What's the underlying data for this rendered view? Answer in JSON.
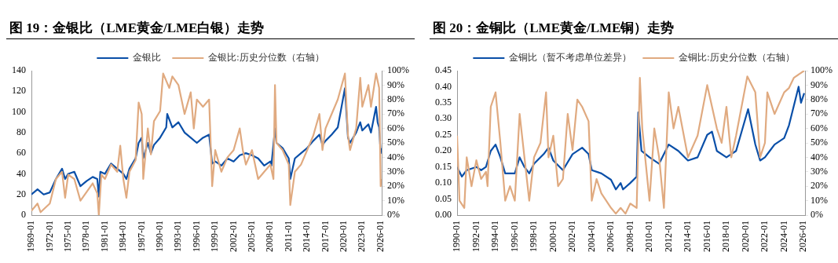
{
  "chart_data": [
    {
      "type": "line",
      "title": "图 19：金银比（LME黄金/LME白银）走势",
      "legend": "top",
      "grid": false,
      "marker": "none",
      "line_style": "solid",
      "xlim": [
        "1969-01",
        "2026-03"
      ],
      "xticks": [
        "1969-01",
        "1972-01",
        "1975-01",
        "1978-01",
        "1981-01",
        "1984-01",
        "1987-01",
        "1990-01",
        "1993-01",
        "1996-01",
        "1999-01",
        "2002-01",
        "2005-01",
        "2008-01",
        "2011-01",
        "2014-01",
        "2017-01",
        "2020-01",
        "2023-01",
        "2026-01"
      ],
      "ylim": [
        0,
        140
      ],
      "yticks": [
        0,
        20,
        40,
        60,
        80,
        100,
        120,
        140
      ],
      "y2lim": [
        0,
        100
      ],
      "y2ticks": [
        {
          "value": 0,
          "label": "0%"
        },
        {
          "value": 10,
          "label": "10%"
        },
        {
          "value": 20,
          "label": "20%"
        },
        {
          "value": 30,
          "label": "30%"
        },
        {
          "value": 40,
          "label": "40%"
        },
        {
          "value": 50,
          "label": "50%"
        },
        {
          "value": 60,
          "label": "60%"
        },
        {
          "value": 70,
          "label": "70%"
        },
        {
          "value": 80,
          "label": "80%"
        },
        {
          "value": 90,
          "label": "90%"
        },
        {
          "value": 100,
          "label": "100%"
        }
      ],
      "series": [
        {
          "name": "金银比",
          "color": "#0a4fa8",
          "x": [
            "1969-01",
            "1970-01",
            "1971-01",
            "1972-01",
            "1973-01",
            "1974-01",
            "1974-07",
            "1975-01",
            "1976-01",
            "1977-01",
            "1978-01",
            "1979-01",
            "1979-10",
            "1980-01",
            "1980-04",
            "1981-01",
            "1982-01",
            "1983-01",
            "1984-01",
            "1984-07",
            "1985-01",
            "1986-01",
            "1986-07",
            "1987-01",
            "1987-04",
            "1988-01",
            "1988-07",
            "1989-01",
            "1990-01",
            "1991-01",
            "1991-03",
            "1992-01",
            "1993-01",
            "1994-01",
            "1995-01",
            "1996-01",
            "1997-01",
            "1998-01",
            "1998-07",
            "1999-01",
            "2000-01",
            "2001-01",
            "2002-01",
            "2003-01",
            "2004-01",
            "2005-01",
            "2006-01",
            "2007-01",
            "2008-01",
            "2008-03",
            "2008-10",
            "2009-01",
            "2010-01",
            "2011-01",
            "2011-04",
            "2012-01",
            "2013-01",
            "2014-01",
            "2015-01",
            "2016-01",
            "2016-07",
            "2017-01",
            "2018-01",
            "2019-01",
            "2020-03",
            "2020-09",
            "2021-01",
            "2022-01",
            "2022-09",
            "2023-01",
            "2024-01",
            "2024-06",
            "2025-04",
            "2025-07",
            "2025-10",
            "2026-01",
            "2026-02"
          ],
          "values": [
            20,
            25,
            20,
            22,
            35,
            45,
            35,
            40,
            42,
            28,
            33,
            37,
            35,
            18,
            42,
            40,
            50,
            45,
            40,
            35,
            45,
            55,
            70,
            75,
            55,
            70,
            60,
            68,
            75,
            85,
            98,
            85,
            90,
            80,
            75,
            70,
            75,
            78,
            50,
            52,
            48,
            55,
            52,
            58,
            60,
            58,
            55,
            48,
            52,
            48,
            84,
            70,
            65,
            55,
            35,
            55,
            60,
            65,
            72,
            78,
            68,
            72,
            78,
            85,
            123,
            75,
            70,
            80,
            90,
            82,
            88,
            80,
            105,
            90,
            85,
            60,
            65
          ]
        },
        {
          "name": "金银比:历史分位数（右轴）",
          "color": "#e0aa80",
          "axis": "y2",
          "x": [
            "1969-01",
            "1970-01",
            "1970-07",
            "1972-01",
            "1973-01",
            "1974-01",
            "1974-07",
            "1975-01",
            "1976-01",
            "1977-01",
            "1978-01",
            "1979-01",
            "1979-10",
            "1980-01",
            "1980-06",
            "1981-01",
            "1982-01",
            "1983-01",
            "1983-07",
            "1984-01",
            "1984-07",
            "1985-01",
            "1986-01",
            "1986-07",
            "1987-01",
            "1987-04",
            "1988-01",
            "1988-07",
            "1989-01",
            "1990-01",
            "1990-07",
            "1991-07",
            "1992-01",
            "1993-01",
            "1994-01",
            "1995-01",
            "1995-07",
            "1996-01",
            "1997-01",
            "1998-01",
            "1998-07",
            "1999-01",
            "2000-01",
            "2001-01",
            "2002-01",
            "2003-01",
            "2003-07",
            "2004-01",
            "2005-01",
            "2006-01",
            "2007-01",
            "2008-01",
            "2008-07",
            "2008-10",
            "2009-01",
            "2010-01",
            "2011-01",
            "2011-04",
            "2012-01",
            "2013-01",
            "2014-01",
            "2015-01",
            "2016-01",
            "2016-07",
            "2017-01",
            "2018-01",
            "2019-01",
            "2020-03",
            "2020-09",
            "2021-01",
            "2022-01",
            "2022-09",
            "2023-01",
            "2024-01",
            "2024-06",
            "2025-04",
            "2025-10",
            "2026-01",
            "2026-02"
          ],
          "values": [
            3,
            8,
            2,
            8,
            25,
            30,
            12,
            28,
            25,
            10,
            16,
            22,
            15,
            0,
            28,
            25,
            35,
            30,
            48,
            25,
            12,
            30,
            38,
            78,
            70,
            25,
            60,
            42,
            65,
            72,
            98,
            88,
            96,
            90,
            70,
            85,
            60,
            80,
            75,
            80,
            20,
            45,
            30,
            40,
            45,
            60,
            45,
            35,
            45,
            25,
            30,
            35,
            25,
            90,
            50,
            45,
            35,
            7,
            30,
            35,
            45,
            55,
            70,
            45,
            60,
            70,
            80,
            98,
            55,
            45,
            60,
            95,
            75,
            90,
            75,
            98,
            88,
            20,
            25
          ]
        }
      ]
    },
    {
      "type": "line",
      "title": "图 20：金铜比（LME黄金/LME铜）走势",
      "legend": "top",
      "grid": false,
      "marker": "none",
      "line_style": "solid",
      "xlim": [
        "1990-01",
        "2026-03"
      ],
      "xticks": [
        "1990-01",
        "1992-01",
        "1994-01",
        "1996-01",
        "1998-01",
        "2000-01",
        "2002-01",
        "2004-01",
        "2006-01",
        "2008-01",
        "2010-01",
        "2012-01",
        "2014-01",
        "2016-01",
        "2018-01",
        "2020-01",
        "2022-01",
        "2024-01",
        "2026-01"
      ],
      "ylim": [
        0,
        0.45
      ],
      "yticks": [
        {
          "value": 0,
          "label": "0.00"
        },
        {
          "value": 0.05,
          "label": "0.05"
        },
        {
          "value": 0.1,
          "label": "0.10"
        },
        {
          "value": 0.15,
          "label": "0.15"
        },
        {
          "value": 0.2,
          "label": "0.20"
        },
        {
          "value": 0.25,
          "label": "0.25"
        },
        {
          "value": 0.3,
          "label": "0.30"
        },
        {
          "value": 0.35,
          "label": "0.35"
        },
        {
          "value": 0.4,
          "label": "0.40"
        },
        {
          "value": 0.45,
          "label": "0.45"
        }
      ],
      "y2lim": [
        0,
        100
      ],
      "y2ticks": [
        {
          "value": 0,
          "label": "0%"
        },
        {
          "value": 10,
          "label": "10%"
        },
        {
          "value": 20,
          "label": "20%"
        },
        {
          "value": 30,
          "label": "30%"
        },
        {
          "value": 40,
          "label": "40%"
        },
        {
          "value": 50,
          "label": "50%"
        },
        {
          "value": 60,
          "label": "60%"
        },
        {
          "value": 70,
          "label": "70%"
        },
        {
          "value": 80,
          "label": "80%"
        },
        {
          "value": 90,
          "label": "90%"
        },
        {
          "value": 100,
          "label": "100%"
        }
      ],
      "series": [
        {
          "name": "金铜比（暂不考虑单位差异）",
          "color": "#0a4fa8",
          "x": [
            "1990-01",
            "1990-07",
            "1991-01",
            "1992-01",
            "1992-07",
            "1993-01",
            "1993-07",
            "1994-01",
            "1994-07",
            "1995-01",
            "1996-01",
            "1996-07",
            "1997-01",
            "1997-07",
            "1998-01",
            "1999-01",
            "1999-07",
            "2000-01",
            "2001-01",
            "2002-01",
            "2003-01",
            "2003-09",
            "2004-01",
            "2005-01",
            "2006-01",
            "2006-07",
            "2007-01",
            "2007-04",
            "2008-01",
            "2008-09",
            "2008-11",
            "2009-03",
            "2010-01",
            "2011-01",
            "2012-01",
            "2013-01",
            "2014-01",
            "2015-01",
            "2016-01",
            "2016-07",
            "2017-01",
            "2018-01",
            "2019-01",
            "2020-04",
            "2021-01",
            "2021-07",
            "2022-01",
            "2022-07",
            "2023-01",
            "2024-01",
            "2024-07",
            "2025-01",
            "2025-07",
            "2025-10",
            "2026-02"
          ],
          "values": [
            0.15,
            0.12,
            0.14,
            0.15,
            0.14,
            0.15,
            0.2,
            0.22,
            0.18,
            0.13,
            0.13,
            0.18,
            0.15,
            0.13,
            0.16,
            0.19,
            0.21,
            0.17,
            0.14,
            0.19,
            0.21,
            0.19,
            0.14,
            0.13,
            0.11,
            0.08,
            0.1,
            0.08,
            0.1,
            0.12,
            0.32,
            0.2,
            0.18,
            0.16,
            0.22,
            0.2,
            0.17,
            0.18,
            0.25,
            0.26,
            0.2,
            0.18,
            0.2,
            0.33,
            0.22,
            0.17,
            0.18,
            0.2,
            0.22,
            0.24,
            0.28,
            0.34,
            0.4,
            0.35,
            0.38
          ]
        },
        {
          "name": "金铜比:历史分位数（右轴）",
          "color": "#e0aa80",
          "axis": "y2",
          "x": [
            "1990-01",
            "1990-04",
            "1990-10",
            "1991-01",
            "1991-07",
            "1992-01",
            "1992-07",
            "1993-01",
            "1993-03",
            "1993-07",
            "1994-01",
            "1994-07",
            "1995-01",
            "1995-07",
            "1996-01",
            "1996-07",
            "1997-01",
            "1997-07",
            "1998-01",
            "1998-09",
            "1999-04",
            "1999-07",
            "2000-01",
            "2000-07",
            "2001-01",
            "2001-07",
            "2002-01",
            "2002-07",
            "2003-01",
            "2003-09",
            "2004-01",
            "2004-07",
            "2005-01",
            "2006-01",
            "2006-07",
            "2007-01",
            "2007-07",
            "2008-01",
            "2008-09",
            "2009-01",
            "2009-04",
            "2010-01",
            "2010-07",
            "2011-01",
            "2011-07",
            "2012-01",
            "2012-07",
            "2013-01",
            "2014-01",
            "2015-01",
            "2016-01",
            "2016-07",
            "2017-01",
            "2017-07",
            "2018-01",
            "2018-07",
            "2019-01",
            "2020-03",
            "2021-01",
            "2021-07",
            "2022-01",
            "2022-04",
            "2023-01",
            "2024-01",
            "2024-07",
            "2025-01",
            "2026-02"
          ],
          "values": [
            55,
            10,
            5,
            40,
            20,
            38,
            25,
            30,
            20,
            75,
            85,
            50,
            10,
            20,
            10,
            70,
            40,
            10,
            40,
            50,
            85,
            40,
            55,
            20,
            25,
            70,
            45,
            80,
            75,
            65,
            10,
            25,
            15,
            5,
            1,
            5,
            1,
            8,
            5,
            95,
            60,
            10,
            60,
            40,
            5,
            85,
            60,
            75,
            40,
            55,
            90,
            75,
            60,
            50,
            75,
            40,
            55,
            96,
            85,
            40,
            50,
            85,
            70,
            85,
            88,
            95,
            100
          ]
        }
      ]
    }
  ]
}
